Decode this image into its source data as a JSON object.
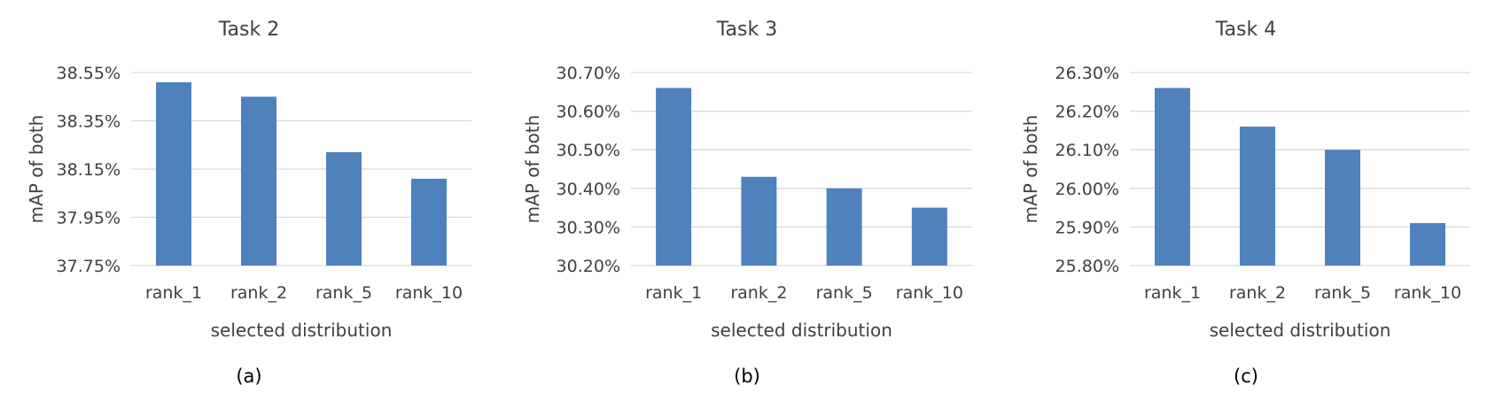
{
  "colors": {
    "bar": "#4F81BD",
    "grid": "#D9D9D9",
    "text": "#404040"
  },
  "chart_data": [
    {
      "type": "bar",
      "title": "Task 2",
      "caption": "(a)",
      "xlabel": "selected distribution",
      "ylabel": "mAP of both",
      "categories": [
        "rank_1",
        "rank_2",
        "rank_5",
        "rank_10"
      ],
      "values": [
        38.51,
        38.45,
        38.22,
        38.11
      ],
      "ylim": [
        37.75,
        38.55
      ],
      "yticks": [
        37.75,
        37.95,
        38.15,
        38.35,
        38.55
      ],
      "ytick_labels": [
        "37.75%",
        "37.95%",
        "38.15%",
        "38.35%",
        "38.55%"
      ],
      "grid": true,
      "legend": "none"
    },
    {
      "type": "bar",
      "title": "Task 3",
      "caption": "(b)",
      "xlabel": "selected distribution",
      "ylabel": "mAP of both",
      "categories": [
        "rank_1",
        "rank_2",
        "rank_5",
        "rank_10"
      ],
      "values": [
        30.66,
        30.43,
        30.4,
        30.35
      ],
      "ylim": [
        30.2,
        30.7
      ],
      "yticks": [
        30.2,
        30.3,
        30.4,
        30.5,
        30.6,
        30.7
      ],
      "ytick_labels": [
        "30.20%",
        "30.30%",
        "30.40%",
        "30.50%",
        "30.60%",
        "30.70%"
      ],
      "grid": true,
      "legend": "none"
    },
    {
      "type": "bar",
      "title": "Task 4",
      "caption": "(c)",
      "xlabel": "selected distribution",
      "ylabel": "mAP of both",
      "categories": [
        "rank_1",
        "rank_2",
        "rank_5",
        "rank_10"
      ],
      "values": [
        26.26,
        26.16,
        26.1,
        25.91
      ],
      "ylim": [
        25.8,
        26.3
      ],
      "yticks": [
        25.8,
        25.9,
        26.0,
        26.1,
        26.2,
        26.3
      ],
      "ytick_labels": [
        "25.80%",
        "25.90%",
        "26.00%",
        "26.10%",
        "26.20%",
        "26.30%"
      ],
      "grid": true,
      "legend": "none"
    }
  ]
}
